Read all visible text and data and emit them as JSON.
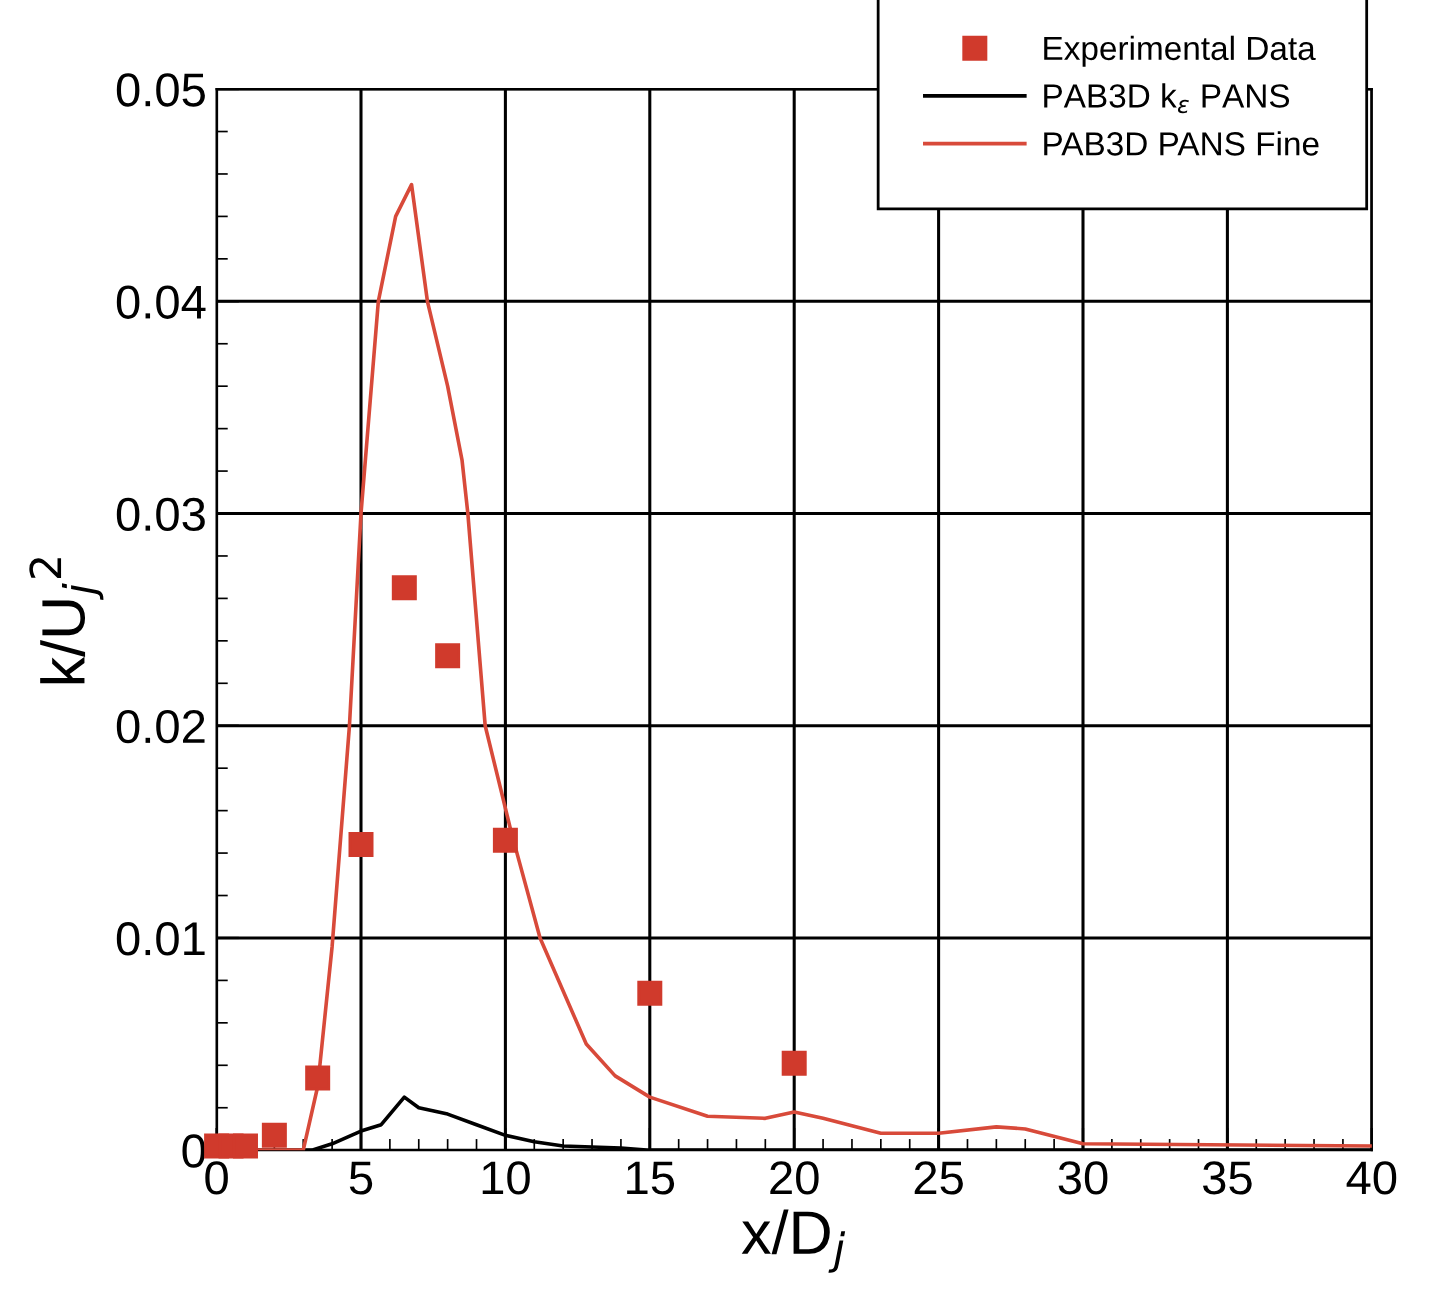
{
  "chart_data": {
    "type": "line",
    "xlabel": "x/D$_{j}$",
    "ylabel": "k/U$_{j}$$^{2}$",
    "xlim": [
      0,
      40
    ],
    "ylim": [
      0,
      0.05
    ],
    "xticks": [
      0,
      5,
      10,
      15,
      20,
      25,
      30,
      35,
      40
    ],
    "yticks": [
      0,
      0.01,
      0.02,
      0.03,
      0.04,
      0.05
    ],
    "grid": true,
    "legend": "top right",
    "series": [
      {
        "name": "Experimental Data",
        "type": "scatter",
        "marker": "square",
        "color": "#d03a2c",
        "x": [
          0,
          0.5,
          1,
          2,
          3.5,
          5,
          6.5,
          8,
          10,
          15,
          20
        ],
        "values": [
          0.0002,
          0.0002,
          0.0002,
          0.0007,
          0.0034,
          0.0144,
          0.0265,
          0.0233,
          0.0146,
          0.0074,
          0.0041
        ]
      },
      {
        "name": "PAB3D k$_{ε}$ PANS",
        "color": "#000000",
        "x": [
          0,
          3.3,
          4,
          5,
          5.7,
          6.5,
          7,
          8,
          9,
          10,
          11,
          12,
          14,
          15,
          40
        ],
        "values": [
          0,
          0,
          0.0003,
          0.0009,
          0.0012,
          0.0025,
          0.002,
          0.0017,
          0.0012,
          0.0007,
          0.0004,
          0.0002,
          0.0001,
          0,
          0
        ]
      },
      {
        "name": "PAB3D PANS Fine",
        "color": "#d84a3a",
        "x": [
          0,
          3,
          3.5,
          4,
          4.6,
          5.0,
          5.6,
          6.2,
          6.75,
          7.3,
          8.0,
          8.5,
          8.7,
          9.3,
          10.2,
          11.2,
          12.8,
          13.8,
          15,
          17,
          19,
          20,
          21,
          23,
          25,
          27,
          28,
          30,
          40
        ],
        "values": [
          0,
          0,
          0.003,
          0.0096,
          0.02,
          0.03,
          0.04,
          0.044,
          0.0455,
          0.04,
          0.036,
          0.0325,
          0.03,
          0.02,
          0.015,
          0.01,
          0.005,
          0.0035,
          0.0025,
          0.0016,
          0.0015,
          0.0018,
          0.0015,
          0.0008,
          0.0008,
          0.0011,
          0.001,
          0.0003,
          0.0002
        ]
      }
    ]
  }
}
